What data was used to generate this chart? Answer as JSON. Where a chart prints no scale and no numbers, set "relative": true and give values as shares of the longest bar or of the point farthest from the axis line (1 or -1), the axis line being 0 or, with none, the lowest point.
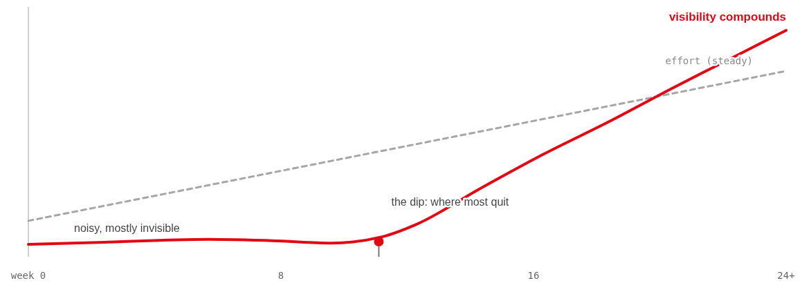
{
  "chart_data": {
    "type": "line",
    "relative": true,
    "xlim": [
      0,
      24
    ],
    "xticks": [
      {
        "value": 0,
        "label": "week 0"
      },
      8,
      16,
      {
        "value": 24,
        "label": "24+"
      }
    ],
    "grid": false,
    "legend": false,
    "series": [
      {
        "name": "effort (steady)",
        "color": "#a6a6a6",
        "line_style": "dashed",
        "marker": "none",
        "x": [
          0,
          24
        ],
        "values": [
          0.11,
          0.81
        ]
      },
      {
        "name": "visibility compounds",
        "color": "#e30613",
        "line_style": "solid",
        "marker": "none",
        "x": [
          0,
          2.4,
          5.7,
          7.9,
          9.6,
          11.2,
          12.3,
          14.3,
          16.3,
          18.4,
          20.4,
          22.4,
          24
        ],
        "values": [
          0,
          0.01,
          0.023,
          0.016,
          0.006,
          0.035,
          0.094,
          0.26,
          0.42,
          0.574,
          0.73,
          0.88,
          1
        ]
      },
      {
        "type": "scatter",
        "color": "#e30613",
        "marker": "circle",
        "x": [
          11.1
        ],
        "values": [
          0.013
        ]
      }
    ],
    "annotations": [
      "noisy, mostly invisible",
      "the dip: where most quit"
    ]
  }
}
